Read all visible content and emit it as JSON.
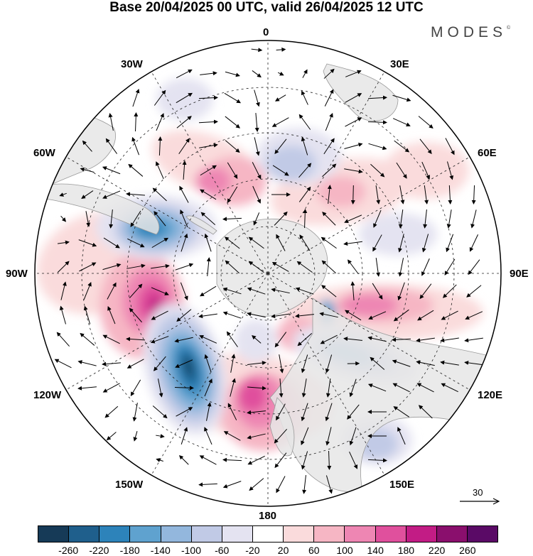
{
  "header": {
    "title": "Base 20/04/2025 00 UTC, valid 26/04/2025 12 UTC",
    "brand": "MODES",
    "brand_mark": "©"
  },
  "map": {
    "projection": "south-polar-stereographic",
    "longitude_labels": {
      "top": "0",
      "top_left": "30W",
      "top_right": "30E",
      "left_upper": "60W",
      "right_upper": "60E",
      "left": "90W",
      "right": "90E",
      "left_lower": "120W",
      "right_lower": "120E",
      "bottom_left": "150W",
      "bottom_right": "150E",
      "bottom": "180"
    },
    "reference_vector": "30",
    "colors": {
      "land": "#e6e6e6",
      "coast": "#9a9a9a",
      "grid": "#222222"
    }
  },
  "colorbar": {
    "colors": [
      "#163a57",
      "#1f5f8c",
      "#2d83ba",
      "#5fa2cf",
      "#93b7dd",
      "#c1cae6",
      "#e4e3f1",
      "#ffffff",
      "#fadbdc",
      "#f6b6c4",
      "#ee86b3",
      "#e0509d",
      "#c21c85",
      "#8a0f6d",
      "#5a0a66"
    ],
    "tick_labels": [
      "-260",
      "-220",
      "-180",
      "-140",
      "-100",
      "-60",
      "-20",
      "20",
      "60",
      "100",
      "140",
      "180",
      "220",
      "260"
    ]
  }
}
